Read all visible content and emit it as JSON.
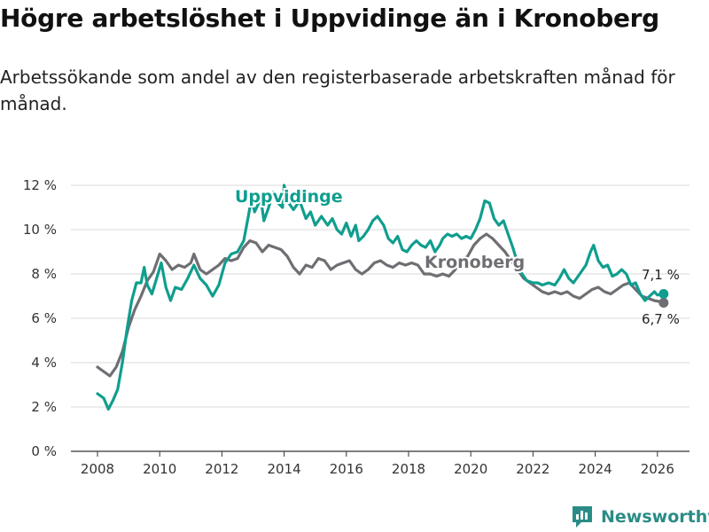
{
  "header": {
    "title": "Högre arbetslöshet i Uppvidinge än i Kronoberg",
    "subtitle": "Arbetssökande som andel av den registerbaserade arbetskraften månad för månad."
  },
  "brand": {
    "name": "Newsworthy"
  },
  "colors": {
    "uppvidinge": "#0f9e8e",
    "kronoberg": "#6e6e73",
    "grid": "#d9d9d9"
  },
  "chart_data": {
    "type": "line",
    "title": "Högre arbetslöshet i Uppvidinge än i Kronoberg",
    "xlabel": "",
    "ylabel": "",
    "xlim": [
      2007.5,
      2026.8
    ],
    "ylim": [
      0,
      12
    ],
    "y_ticks": [
      0,
      2,
      4,
      6,
      8,
      10,
      12
    ],
    "y_tick_labels": [
      "0 %",
      "2 %",
      "4 %",
      "6 %",
      "8 %",
      "10 %",
      "12 %"
    ],
    "x_ticks": [
      2008,
      2010,
      2012,
      2014,
      2016,
      2018,
      2020,
      2022,
      2024,
      2026
    ],
    "x_tick_labels": [
      "2008",
      "2010",
      "2012",
      "2014",
      "2016",
      "2018",
      "2020",
      "2022",
      "2024",
      "2026"
    ],
    "grid": true,
    "series": [
      {
        "name": "Uppvidinge",
        "end_label": "7,1 %",
        "points": [
          [
            2008.0,
            2.6
          ],
          [
            2008.2,
            2.4
          ],
          [
            2008.35,
            1.9
          ],
          [
            2008.5,
            2.3
          ],
          [
            2008.65,
            2.8
          ],
          [
            2008.8,
            4.0
          ],
          [
            2008.95,
            5.5
          ],
          [
            2009.1,
            6.8
          ],
          [
            2009.25,
            7.6
          ],
          [
            2009.4,
            7.6
          ],
          [
            2009.5,
            8.3
          ],
          [
            2009.6,
            7.5
          ],
          [
            2009.75,
            7.1
          ],
          [
            2009.9,
            7.8
          ],
          [
            2010.05,
            8.5
          ],
          [
            2010.2,
            7.4
          ],
          [
            2010.35,
            6.8
          ],
          [
            2010.5,
            7.4
          ],
          [
            2010.7,
            7.3
          ],
          [
            2010.9,
            7.8
          ],
          [
            2011.1,
            8.4
          ],
          [
            2011.3,
            7.8
          ],
          [
            2011.5,
            7.5
          ],
          [
            2011.7,
            7.0
          ],
          [
            2011.9,
            7.5
          ],
          [
            2012.1,
            8.5
          ],
          [
            2012.3,
            8.9
          ],
          [
            2012.5,
            9.0
          ],
          [
            2012.7,
            9.5
          ],
          [
            2012.85,
            10.6
          ],
          [
            2012.95,
            11.4
          ],
          [
            2013.05,
            10.8
          ],
          [
            2013.25,
            11.4
          ],
          [
            2013.35,
            10.4
          ],
          [
            2013.5,
            11.0
          ],
          [
            2013.65,
            11.7
          ],
          [
            2013.8,
            11.2
          ],
          [
            2013.95,
            11.0
          ],
          [
            2014.0,
            12.0
          ],
          [
            2014.1,
            11.3
          ],
          [
            2014.3,
            10.9
          ],
          [
            2014.5,
            11.3
          ],
          [
            2014.7,
            10.5
          ],
          [
            2014.85,
            10.8
          ],
          [
            2015.0,
            10.2
          ],
          [
            2015.2,
            10.6
          ],
          [
            2015.4,
            10.2
          ],
          [
            2015.55,
            10.5
          ],
          [
            2015.7,
            10.0
          ],
          [
            2015.85,
            9.8
          ],
          [
            2016.0,
            10.3
          ],
          [
            2016.15,
            9.7
          ],
          [
            2016.3,
            10.2
          ],
          [
            2016.4,
            9.5
          ],
          [
            2016.55,
            9.7
          ],
          [
            2016.7,
            10.0
          ],
          [
            2016.85,
            10.4
          ],
          [
            2017.0,
            10.6
          ],
          [
            2017.2,
            10.2
          ],
          [
            2017.35,
            9.6
          ],
          [
            2017.5,
            9.4
          ],
          [
            2017.65,
            9.7
          ],
          [
            2017.8,
            9.1
          ],
          [
            2017.95,
            9.0
          ],
          [
            2018.1,
            9.3
          ],
          [
            2018.25,
            9.5
          ],
          [
            2018.4,
            9.3
          ],
          [
            2018.55,
            9.2
          ],
          [
            2018.7,
            9.5
          ],
          [
            2018.85,
            9.0
          ],
          [
            2019.0,
            9.3
          ],
          [
            2019.1,
            9.6
          ],
          [
            2019.25,
            9.8
          ],
          [
            2019.4,
            9.7
          ],
          [
            2019.55,
            9.8
          ],
          [
            2019.7,
            9.6
          ],
          [
            2019.85,
            9.7
          ],
          [
            2020.0,
            9.6
          ],
          [
            2020.15,
            10.0
          ],
          [
            2020.3,
            10.5
          ],
          [
            2020.45,
            11.3
          ],
          [
            2020.6,
            11.2
          ],
          [
            2020.75,
            10.5
          ],
          [
            2020.9,
            10.2
          ],
          [
            2021.05,
            10.4
          ],
          [
            2021.2,
            9.8
          ],
          [
            2021.35,
            9.2
          ],
          [
            2021.5,
            8.5
          ],
          [
            2021.65,
            8.0
          ],
          [
            2021.8,
            7.7
          ],
          [
            2022.0,
            7.6
          ],
          [
            2022.15,
            7.6
          ],
          [
            2022.3,
            7.5
          ],
          [
            2022.5,
            7.6
          ],
          [
            2022.7,
            7.5
          ],
          [
            2022.85,
            7.8
          ],
          [
            2023.0,
            8.2
          ],
          [
            2023.15,
            7.8
          ],
          [
            2023.3,
            7.6
          ],
          [
            2023.5,
            8.0
          ],
          [
            2023.7,
            8.4
          ],
          [
            2023.85,
            9.0
          ],
          [
            2023.95,
            9.3
          ],
          [
            2024.1,
            8.6
          ],
          [
            2024.25,
            8.3
          ],
          [
            2024.4,
            8.4
          ],
          [
            2024.55,
            7.9
          ],
          [
            2024.7,
            8.0
          ],
          [
            2024.85,
            8.2
          ],
          [
            2025.0,
            8.0
          ],
          [
            2025.15,
            7.5
          ],
          [
            2025.3,
            7.6
          ],
          [
            2025.45,
            7.1
          ],
          [
            2025.6,
            6.8
          ],
          [
            2025.75,
            7.0
          ],
          [
            2025.9,
            7.2
          ],
          [
            2026.0,
            7.05
          ],
          [
            2026.2,
            7.1
          ]
        ]
      },
      {
        "name": "Kronoberg",
        "end_label": "6,7 %",
        "points": [
          [
            2008.0,
            3.8
          ],
          [
            2008.2,
            3.6
          ],
          [
            2008.4,
            3.4
          ],
          [
            2008.6,
            3.8
          ],
          [
            2008.8,
            4.5
          ],
          [
            2009.0,
            5.6
          ],
          [
            2009.2,
            6.4
          ],
          [
            2009.4,
            7.0
          ],
          [
            2009.6,
            7.7
          ],
          [
            2009.8,
            8.1
          ],
          [
            2010.0,
            8.9
          ],
          [
            2010.2,
            8.6
          ],
          [
            2010.4,
            8.2
          ],
          [
            2010.6,
            8.4
          ],
          [
            2010.8,
            8.3
          ],
          [
            2011.0,
            8.5
          ],
          [
            2011.1,
            8.9
          ],
          [
            2011.3,
            8.2
          ],
          [
            2011.5,
            8.0
          ],
          [
            2011.7,
            8.2
          ],
          [
            2011.9,
            8.4
          ],
          [
            2012.1,
            8.7
          ],
          [
            2012.3,
            8.6
          ],
          [
            2012.5,
            8.7
          ],
          [
            2012.7,
            9.2
          ],
          [
            2012.9,
            9.5
          ],
          [
            2013.1,
            9.4
          ],
          [
            2013.3,
            9.0
          ],
          [
            2013.5,
            9.3
          ],
          [
            2013.7,
            9.2
          ],
          [
            2013.9,
            9.1
          ],
          [
            2014.1,
            8.8
          ],
          [
            2014.3,
            8.3
          ],
          [
            2014.5,
            8.0
          ],
          [
            2014.7,
            8.4
          ],
          [
            2014.9,
            8.3
          ],
          [
            2015.1,
            8.7
          ],
          [
            2015.3,
            8.6
          ],
          [
            2015.5,
            8.2
          ],
          [
            2015.7,
            8.4
          ],
          [
            2015.9,
            8.5
          ],
          [
            2016.1,
            8.6
          ],
          [
            2016.3,
            8.2
          ],
          [
            2016.5,
            8.0
          ],
          [
            2016.7,
            8.2
          ],
          [
            2016.9,
            8.5
          ],
          [
            2017.1,
            8.6
          ],
          [
            2017.3,
            8.4
          ],
          [
            2017.5,
            8.3
          ],
          [
            2017.7,
            8.5
          ],
          [
            2017.9,
            8.4
          ],
          [
            2018.1,
            8.5
          ],
          [
            2018.3,
            8.4
          ],
          [
            2018.5,
            8.0
          ],
          [
            2018.7,
            8.0
          ],
          [
            2018.9,
            7.9
          ],
          [
            2019.1,
            8.0
          ],
          [
            2019.3,
            7.9
          ],
          [
            2019.5,
            8.2
          ],
          [
            2019.7,
            8.6
          ],
          [
            2019.9,
            8.8
          ],
          [
            2020.1,
            9.3
          ],
          [
            2020.3,
            9.6
          ],
          [
            2020.5,
            9.8
          ],
          [
            2020.7,
            9.6
          ],
          [
            2020.9,
            9.3
          ],
          [
            2021.1,
            9.0
          ],
          [
            2021.3,
            8.6
          ],
          [
            2021.5,
            8.2
          ],
          [
            2021.7,
            7.8
          ],
          [
            2021.9,
            7.6
          ],
          [
            2022.1,
            7.4
          ],
          [
            2022.3,
            7.2
          ],
          [
            2022.5,
            7.1
          ],
          [
            2022.7,
            7.2
          ],
          [
            2022.9,
            7.1
          ],
          [
            2023.1,
            7.2
          ],
          [
            2023.3,
            7.0
          ],
          [
            2023.5,
            6.9
          ],
          [
            2023.7,
            7.1
          ],
          [
            2023.9,
            7.3
          ],
          [
            2024.1,
            7.4
          ],
          [
            2024.3,
            7.2
          ],
          [
            2024.5,
            7.1
          ],
          [
            2024.7,
            7.3
          ],
          [
            2024.9,
            7.5
          ],
          [
            2025.1,
            7.6
          ],
          [
            2025.3,
            7.3
          ],
          [
            2025.5,
            7.0
          ],
          [
            2025.7,
            6.9
          ],
          [
            2025.9,
            6.8
          ],
          [
            2026.1,
            6.75
          ],
          [
            2026.2,
            6.7
          ]
        ]
      }
    ]
  }
}
